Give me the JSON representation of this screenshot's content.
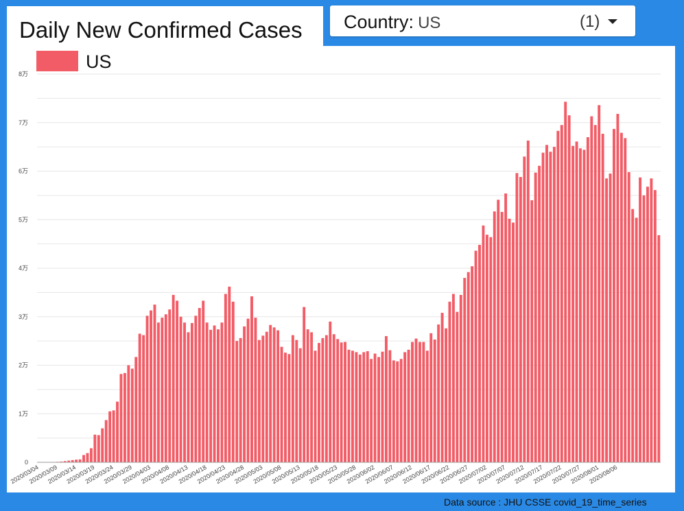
{
  "header": {
    "title": "Daily New Confirmed Cases",
    "country_label": "Country",
    "country_sep": ":",
    "country_value": "US",
    "selection_count": "(1)"
  },
  "footer": {
    "source": "Data source : JHU CSSE covid_19_time_series"
  },
  "colors": {
    "bar": "#f25c66",
    "background": "#2a89e4",
    "grid": "#e6e6e6"
  },
  "chart_data": {
    "type": "bar",
    "legend": {
      "position": "top-left",
      "entries": [
        "US"
      ]
    },
    "grid": true,
    "ylim": [
      0,
      80000
    ],
    "y_ticks": [
      0,
      10000,
      20000,
      30000,
      40000,
      50000,
      60000,
      70000,
      80000
    ],
    "y_tick_labels": [
      "0",
      "1万",
      "2万",
      "3万",
      "4万",
      "5万",
      "6万",
      "7万",
      "8万"
    ],
    "x_tick_labels": [
      "2020/03/04",
      "2020/03/09",
      "2020/03/14",
      "2020/03/19",
      "2020/03/24",
      "2020/03/29",
      "2020/04/03",
      "2020/04/08",
      "2020/04/13",
      "2020/04/18",
      "2020/04/23",
      "2020/04/28",
      "2020/05/03",
      "2020/05/08",
      "2020/05/13",
      "2020/05/18",
      "2020/05/23",
      "2020/05/28",
      "2020/06/02",
      "2020/06/07",
      "2020/06/12",
      "2020/06/17",
      "2020/06/22",
      "2020/06/27",
      "2020/07/02",
      "2020/07/07",
      "2020/07/12",
      "2020/07/17",
      "2020/07/22",
      "2020/07/27",
      "2020/08/01",
      "2020/08/06"
    ],
    "x_start": "2020/03/04",
    "x_end": "2020/08/09",
    "series": [
      {
        "name": "US",
        "values": [
          10,
          20,
          30,
          40,
          60,
          100,
          150,
          250,
          350,
          450,
          550,
          600,
          1500,
          1900,
          2900,
          5700,
          5600,
          7000,
          8700,
          10500,
          10700,
          12500,
          18200,
          18400,
          20000,
          19300,
          21700,
          26500,
          26200,
          30200,
          31300,
          32500,
          28800,
          29800,
          30500,
          31500,
          34500,
          33300,
          30000,
          28800,
          26800,
          28700,
          30200,
          31800,
          33300,
          28800,
          27300,
          28200,
          27400,
          28800,
          34700,
          36200,
          33100,
          25000,
          25600,
          28000,
          29600,
          34200,
          29800,
          25200,
          26100,
          26900,
          28300,
          27800,
          27200,
          23800,
          22600,
          22300,
          26200,
          25200,
          23500,
          32000,
          27400,
          26800,
          23000,
          24600,
          25600,
          26200,
          29000,
          26400,
          25400,
          24700,
          24800,
          23200,
          23000,
          22700,
          22200,
          22700,
          22900,
          21300,
          22400,
          21700,
          22800,
          26000,
          23100,
          21000,
          20800,
          21300,
          22700,
          23200,
          24800,
          25500,
          24800,
          24800,
          23000,
          26600,
          25300,
          28400,
          30800,
          27600,
          33100,
          34700,
          31000,
          34500,
          38000,
          39200,
          40400,
          43600,
          44800,
          48800,
          46900,
          46400,
          51700,
          54100,
          51600,
          55400,
          50200,
          49400,
          59600,
          58800,
          63000,
          66300,
          54000,
          59700,
          61100,
          63800,
          65400,
          64000,
          65000,
          68300,
          69500,
          74300,
          71500,
          65200,
          66100,
          64700,
          64400,
          67000,
          71300,
          69500,
          73600,
          67700,
          58500,
          59500,
          68700,
          71800,
          67900,
          66800,
          59800,
          52200,
          50400,
          58700,
          55000,
          56800,
          58500,
          56100,
          46800
        ]
      }
    ]
  }
}
